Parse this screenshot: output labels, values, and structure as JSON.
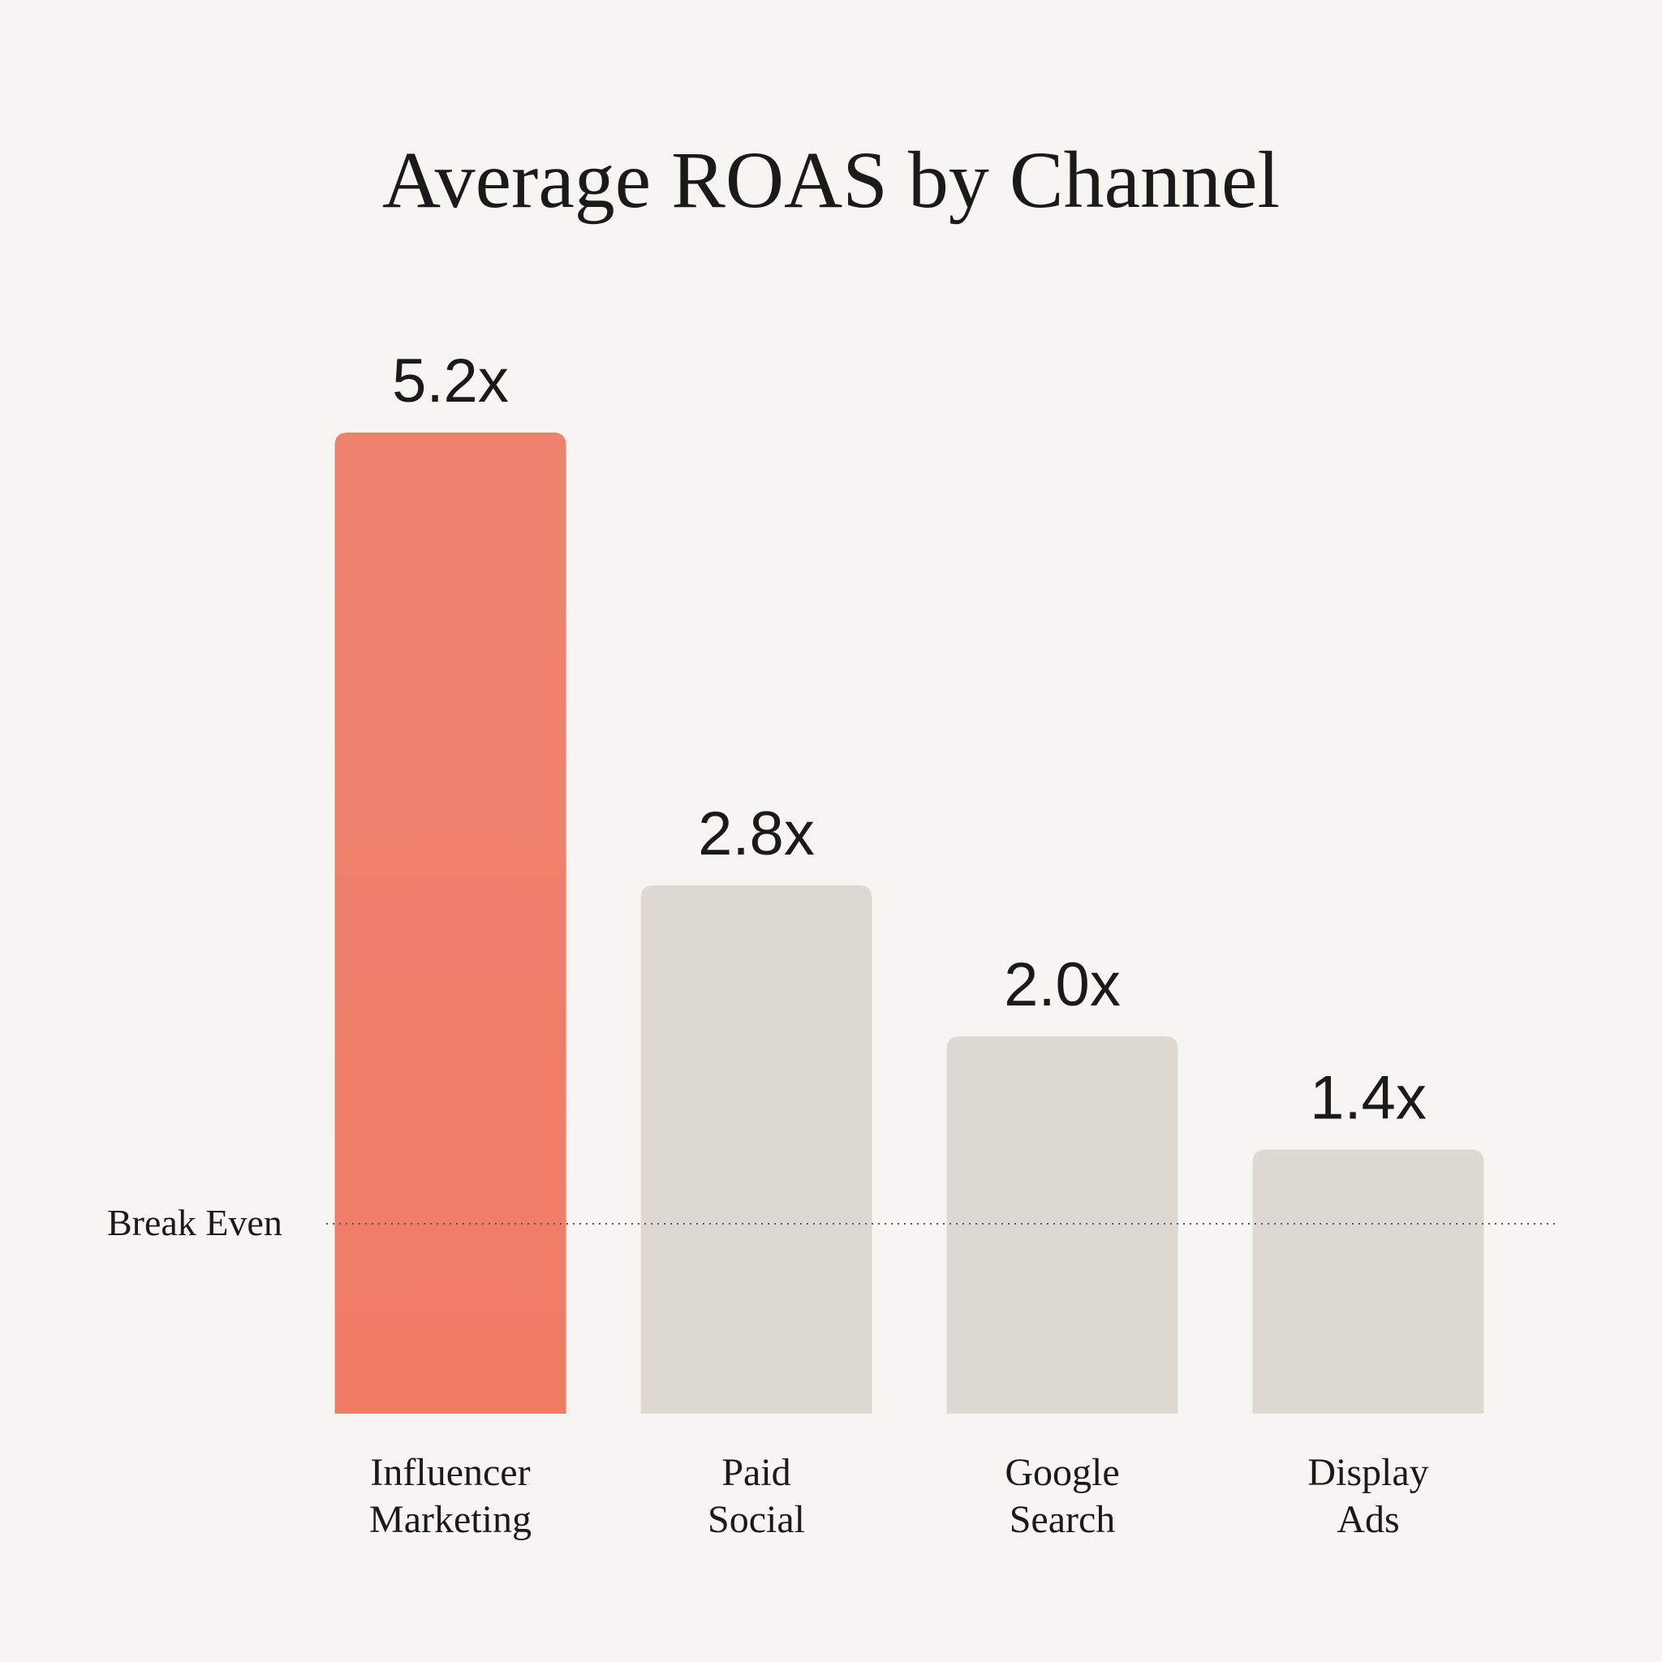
{
  "chart_data": {
    "type": "bar",
    "title": "Average ROAS by Channel",
    "xlabel": "",
    "ylabel": "",
    "categories": [
      [
        "Influencer",
        "Marketing"
      ],
      [
        "Paid",
        "Social"
      ],
      [
        "Google",
        "Search"
      ],
      [
        "Display",
        "Ads"
      ]
    ],
    "values": [
      5.2,
      2.8,
      2.0,
      1.4
    ],
    "value_labels": [
      "5.2x",
      "2.8x",
      "2.0x",
      "1.4x"
    ],
    "highlight_index": 0,
    "colors": {
      "highlight": "#f07c66",
      "default": "#dedad3",
      "background": "#f6f5f2",
      "text": "#1a1a1a"
    },
    "reference_line": {
      "label": "Break Even",
      "value": 1.0,
      "style": "dotted"
    },
    "ylim": [
      0,
      5.2
    ],
    "grid": false,
    "legend": "none"
  }
}
